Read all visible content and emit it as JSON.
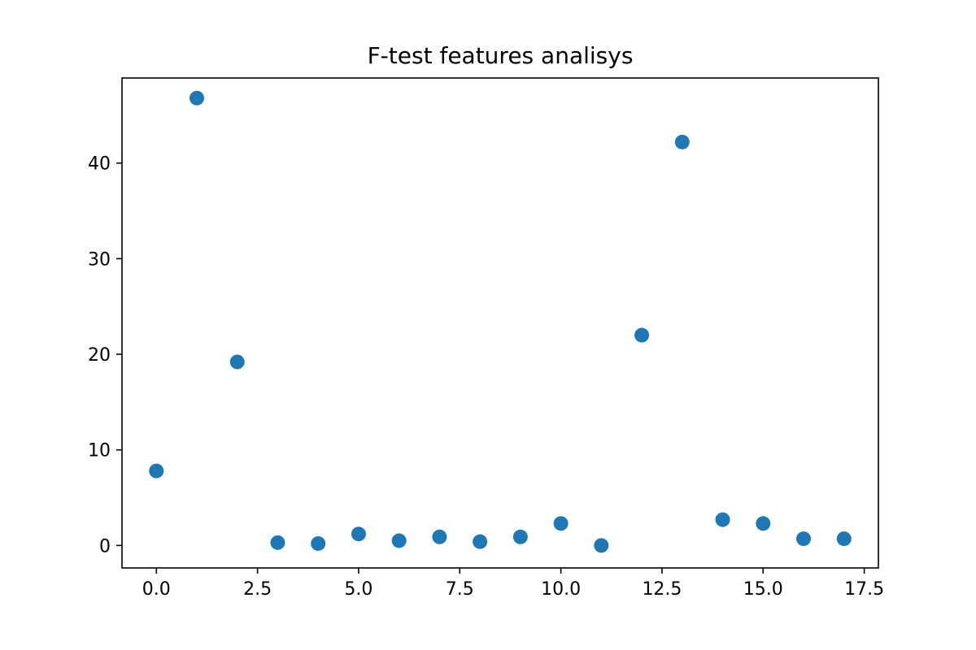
{
  "chart_data": {
    "type": "scatter",
    "title": "F-test features analisys",
    "xlabel": "",
    "ylabel": "",
    "xlim": [
      -0.85,
      17.85
    ],
    "ylim": [
      -2.35,
      48.9
    ],
    "xticks": [
      0.0,
      2.5,
      5.0,
      7.5,
      10.0,
      12.5,
      15.0,
      17.5
    ],
    "xtick_labels": [
      "0.0",
      "2.5",
      "5.0",
      "7.5",
      "10.0",
      "12.5",
      "15.0",
      "17.5"
    ],
    "yticks": [
      0,
      10,
      20,
      30,
      40
    ],
    "ytick_labels": [
      "0",
      "10",
      "20",
      "30",
      "40"
    ],
    "grid": false,
    "legend": "none",
    "color": "#1f77b4",
    "x": [
      0,
      1,
      2,
      3,
      4,
      5,
      6,
      7,
      8,
      9,
      10,
      11,
      12,
      13,
      14,
      15,
      16,
      17
    ],
    "y": [
      7.8,
      46.8,
      19.2,
      0.3,
      0.2,
      1.2,
      0.5,
      0.9,
      0.4,
      0.9,
      2.3,
      0.0,
      22.0,
      42.2,
      2.7,
      2.3,
      0.7,
      0.7
    ]
  }
}
